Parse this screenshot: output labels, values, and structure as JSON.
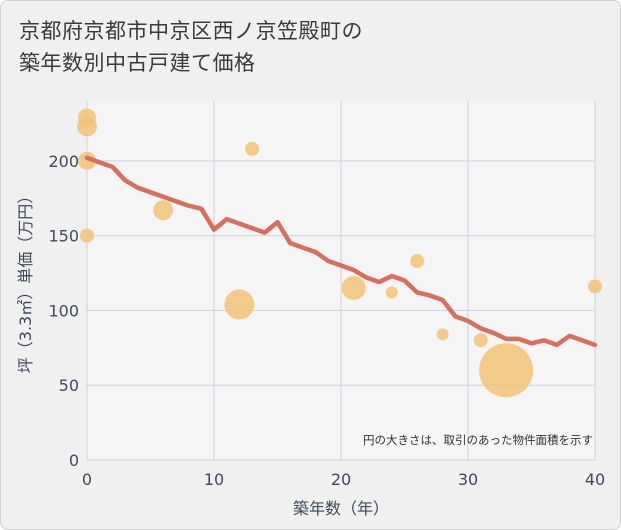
{
  "title_line1": "京都府京都市中京区西ノ京笠殿町の",
  "title_line2": "築年数別中古戸建て価格",
  "chart_data": {
    "type": "scatter+line",
    "xlabel": "築年数（年）",
    "ylabel": "坪（3.3㎡）単価（万円）",
    "xlim": [
      0,
      40
    ],
    "ylim": [
      0,
      240
    ],
    "xticks": [
      0,
      10,
      20,
      30,
      40
    ],
    "yticks": [
      0,
      50,
      100,
      150,
      200
    ],
    "grid": true,
    "annotation": "円の大きさは、取引のあった物件面積を示す",
    "colors": {
      "line": "#d96e5c",
      "bubble": "#f3c274",
      "background": "#f0f0f0",
      "plot_background": "#f5f5f5",
      "grid": "#c8d5e0",
      "axis_text": "#3f4a5a"
    },
    "trend_line": {
      "name": "trend",
      "x": [
        0,
        1,
        2,
        3,
        4,
        5,
        6,
        7,
        8,
        9,
        10,
        11,
        12,
        13,
        14,
        15,
        16,
        17,
        18,
        19,
        20,
        21,
        22,
        23,
        24,
        25,
        26,
        27,
        28,
        29,
        30,
        31,
        32,
        33,
        34,
        35,
        36,
        37,
        38,
        39,
        40
      ],
      "y": [
        202,
        199,
        196,
        187,
        182,
        179,
        176,
        173,
        170,
        168,
        154,
        161,
        158,
        155,
        152,
        159,
        145,
        142,
        139,
        133,
        130,
        127,
        122,
        119,
        123,
        120,
        112,
        110,
        107,
        96,
        93,
        88,
        85,
        81,
        81,
        78,
        80,
        77,
        83,
        80,
        77
      ]
    },
    "bubbles": {
      "name": "transactions",
      "points": [
        {
          "x": 0,
          "y": 229,
          "size": 9
        },
        {
          "x": 0,
          "y": 223,
          "size": 10
        },
        {
          "x": 0,
          "y": 200,
          "size": 9
        },
        {
          "x": 0,
          "y": 150,
          "size": 7
        },
        {
          "x": 6,
          "y": 167,
          "size": 10
        },
        {
          "x": 12,
          "y": 104,
          "size": 15
        },
        {
          "x": 13,
          "y": 208,
          "size": 7
        },
        {
          "x": 21,
          "y": 115,
          "size": 12
        },
        {
          "x": 24,
          "y": 112,
          "size": 6
        },
        {
          "x": 26,
          "y": 133,
          "size": 7
        },
        {
          "x": 28,
          "y": 84,
          "size": 6
        },
        {
          "x": 31,
          "y": 80,
          "size": 7
        },
        {
          "x": 33,
          "y": 60,
          "size": 27
        },
        {
          "x": 40,
          "y": 116,
          "size": 7
        }
      ]
    }
  }
}
